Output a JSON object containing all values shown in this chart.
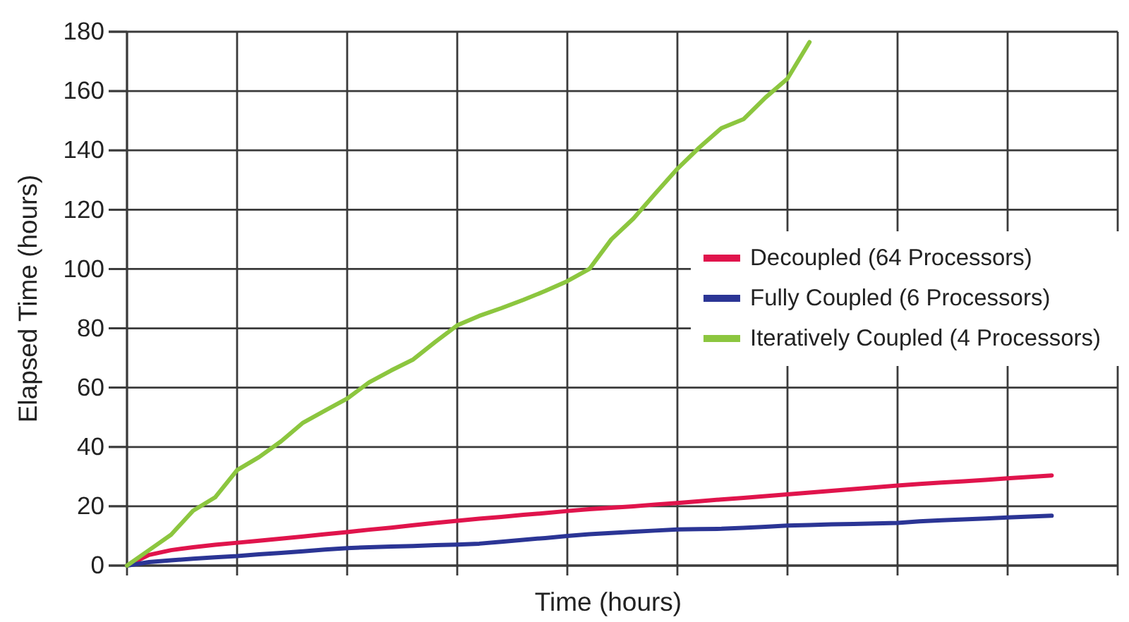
{
  "chart_data": {
    "type": "line",
    "xlabel": "Time (hours)",
    "ylabel": "Elapsed Time (hours)",
    "categories": [
      null,
      null,
      null,
      null,
      null,
      null,
      null,
      null,
      null,
      null,
      null,
      null,
      null,
      null,
      null,
      null,
      null,
      null,
      null,
      null,
      null,
      null,
      null,
      null,
      null,
      null,
      null,
      null,
      null,
      null,
      null,
      null,
      null,
      null,
      null,
      null,
      null,
      null,
      null,
      null,
      null,
      null,
      null,
      null,
      null,
      null
    ],
    "series": [
      {
        "name": "Decoupled (64 Processors)",
        "color": "#e0144c",
        "values": [
          0,
          3.6,
          5.2,
          6.2,
          7.0,
          7.7,
          8.4,
          9.1,
          9.8,
          10.6,
          11.3,
          12.1,
          12.8,
          13.6,
          14.4,
          15.1,
          15.8,
          16.4,
          17.1,
          17.7,
          18.4,
          19.0,
          19.5,
          20.0,
          20.6,
          21.1,
          21.7,
          22.3,
          22.8,
          23.4,
          24.0,
          24.6,
          25.2,
          25.8,
          26.4,
          27.0,
          27.5,
          28.0,
          28.4,
          28.9,
          29.4,
          29.9,
          30.4,
          null,
          null,
          null
        ]
      },
      {
        "name": "Fully Coupled (6 Processors)",
        "color": "#2b3595",
        "values": [
          0,
          1.2,
          1.8,
          2.3,
          2.8,
          3.2,
          3.8,
          4.3,
          4.8,
          5.4,
          5.9,
          6.2,
          6.4,
          6.6,
          6.9,
          7.1,
          7.4,
          8.0,
          8.7,
          9.3,
          10.0,
          10.6,
          11.0,
          11.4,
          11.8,
          12.2,
          12.3,
          12.4,
          12.7,
          13.1,
          13.5,
          13.7,
          13.9,
          14.0,
          14.2,
          14.4,
          14.9,
          15.3,
          15.6,
          15.9,
          16.2,
          16.5,
          16.8,
          null,
          null,
          null
        ]
      },
      {
        "name": "Iteratively Coupled (4 Processors)",
        "color": "#8cc63f",
        "values": [
          0,
          5.2,
          10.4,
          18.5,
          23,
          32.2,
          36.6,
          41.9,
          48.2,
          52.3,
          56.3,
          61.8,
          65.8,
          69.5,
          75.4,
          81,
          84.2,
          86.8,
          89.6,
          92.6,
          95.9,
          100,
          110,
          117,
          125.5,
          133.8,
          141,
          147.5,
          150.5,
          157.8,
          164.2,
          176.5,
          null,
          null,
          null,
          null,
          null,
          null,
          null,
          null,
          null,
          null,
          null,
          null,
          null,
          null
        ]
      }
    ],
    "ylim": [
      0,
      180
    ],
    "yticks": [
      0,
      20,
      40,
      60,
      80,
      100,
      120,
      140,
      160,
      180
    ],
    "grid": true,
    "legend": "right",
    "marker": "none",
    "line_style": "solid"
  }
}
